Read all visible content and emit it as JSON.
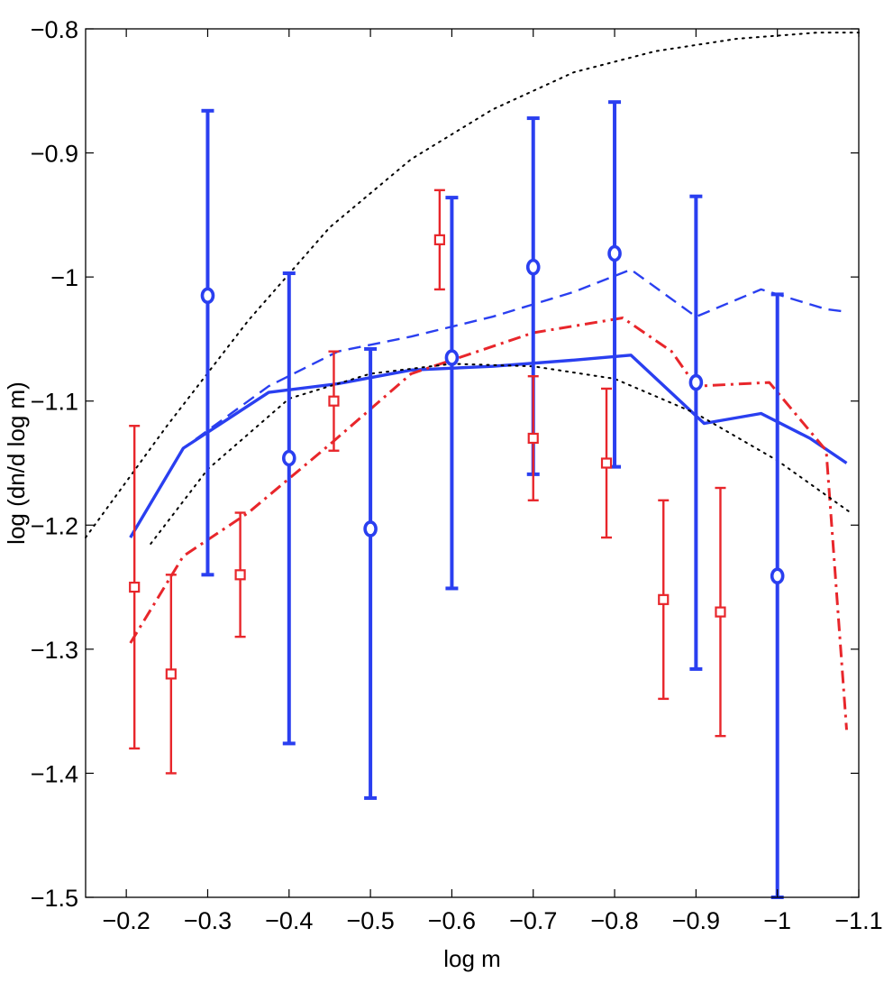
{
  "chart_data": {
    "type": "line",
    "title": "",
    "xlabel": "log m",
    "ylabel": "log (dn/d log m)",
    "xlim": [
      -0.15,
      -1.1
    ],
    "ylim": [
      -1.5,
      -0.8
    ],
    "x_reversed": true,
    "xticks": [
      -0.2,
      -0.3,
      -0.4,
      -0.5,
      -0.6,
      -0.7,
      -0.8,
      -0.9,
      -1,
      -1.1
    ],
    "xtick_labels": [
      "−0.2",
      "−0.3",
      "−0.4",
      "−0.5",
      "−0.6",
      "−0.7",
      "−0.8",
      "−0.9",
      "−1",
      "−1.1"
    ],
    "yticks": [
      -1.5,
      -1.4,
      -1.3,
      -1.2,
      -1.1,
      -1,
      -0.9,
      -0.8
    ],
    "ytick_labels": [
      "−1.5",
      "−1.4",
      "−1.3",
      "−1.2",
      "−1.1",
      "−1",
      "−0.9",
      "−0.8"
    ],
    "grid": false,
    "series": [
      {
        "name": "blue-circles",
        "kind": "errorbar",
        "marker": "circle",
        "color": "#2a3ff0",
        "points": [
          {
            "x": -0.3,
            "y": -1.015,
            "lo": -1.24,
            "hi": -0.866
          },
          {
            "x": -0.4,
            "y": -1.146,
            "lo": -1.376,
            "hi": -0.997
          },
          {
            "x": -0.5,
            "y": -1.203,
            "lo": -1.42,
            "hi": -1.058
          },
          {
            "x": -0.6,
            "y": -1.065,
            "lo": -1.251,
            "hi": -0.936
          },
          {
            "x": -0.7,
            "y": -0.992,
            "lo": -1.159,
            "hi": -0.872
          },
          {
            "x": -0.8,
            "y": -0.981,
            "lo": -1.153,
            "hi": -0.859
          },
          {
            "x": -0.9,
            "y": -1.085,
            "lo": -1.316,
            "hi": -0.935
          },
          {
            "x": -1.0,
            "y": -1.241,
            "lo": -1.5,
            "hi": -1.014
          }
        ]
      },
      {
        "name": "red-squares",
        "kind": "errorbar",
        "marker": "square",
        "color": "#e8262b",
        "points": [
          {
            "x": -0.21,
            "y": -1.25,
            "lo": -1.38,
            "hi": -1.12
          },
          {
            "x": -0.255,
            "y": -1.32,
            "lo": -1.4,
            "hi": -1.24
          },
          {
            "x": -0.34,
            "y": -1.24,
            "lo": -1.29,
            "hi": -1.19
          },
          {
            "x": -0.455,
            "y": -1.1,
            "lo": -1.14,
            "hi": -1.06
          },
          {
            "x": -0.585,
            "y": -0.97,
            "lo": -1.01,
            "hi": -0.93
          },
          {
            "x": -0.7,
            "y": -1.13,
            "lo": -1.18,
            "hi": -1.08
          },
          {
            "x": -0.79,
            "y": -1.15,
            "lo": -1.21,
            "hi": -1.09
          },
          {
            "x": -0.86,
            "y": -1.26,
            "lo": -1.34,
            "hi": -1.18
          },
          {
            "x": -0.93,
            "y": -1.27,
            "lo": -1.37,
            "hi": -1.17
          }
        ]
      },
      {
        "name": "blue-solid",
        "kind": "line",
        "style": "solid",
        "color": "#2a3ff0",
        "x": [
          -0.205,
          -0.27,
          -0.375,
          -0.46,
          -0.55,
          -0.65,
          -0.75,
          -0.82,
          -0.91,
          -0.98,
          -1.04,
          -1.085
        ],
        "y": [
          -1.21,
          -1.138,
          -1.093,
          -1.086,
          -1.075,
          -1.072,
          -1.067,
          -1.063,
          -1.118,
          -1.11,
          -1.13,
          -1.15
        ]
      },
      {
        "name": "blue-dashed",
        "kind": "line",
        "style": "dashed",
        "color": "#2a3ff0",
        "x": [
          -0.205,
          -0.27,
          -0.375,
          -0.46,
          -0.55,
          -0.65,
          -0.75,
          -0.82,
          -0.9,
          -0.98,
          -1.06,
          -1.085
        ],
        "y": [
          -1.21,
          -1.138,
          -1.088,
          -1.06,
          -1.048,
          -1.032,
          -1.012,
          -0.994,
          -1.032,
          -1.01,
          -1.026,
          -1.028
        ]
      },
      {
        "name": "red-dashdot",
        "kind": "line",
        "style": "dashdot",
        "color": "#e8262b",
        "x": [
          -0.205,
          -0.27,
          -0.35,
          -0.45,
          -0.55,
          -0.7,
          -0.81,
          -0.87,
          -0.9,
          -0.99,
          -1.06,
          -1.085
        ],
        "y": [
          -1.295,
          -1.225,
          -1.19,
          -1.135,
          -1.078,
          -1.045,
          -1.033,
          -1.06,
          -1.088,
          -1.085,
          -1.14,
          -1.365
        ]
      },
      {
        "name": "black-dotted-upper",
        "kind": "line",
        "style": "dotted",
        "color": "#000000",
        "x": [
          -0.15,
          -0.25,
          -0.35,
          -0.45,
          -0.55,
          -0.65,
          -0.75,
          -0.85,
          -0.95,
          -1.05,
          -1.1
        ],
        "y": [
          -1.21,
          -1.12,
          -1.035,
          -0.96,
          -0.905,
          -0.865,
          -0.835,
          -0.818,
          -0.808,
          -0.803,
          -0.803
        ]
      },
      {
        "name": "black-dotted-lower",
        "kind": "line",
        "style": "dotted",
        "color": "#000000",
        "x": [
          -0.23,
          -0.3,
          -0.4,
          -0.5,
          -0.6,
          -0.7,
          -0.8,
          -0.9,
          -1.0,
          -1.09
        ],
        "y": [
          -1.215,
          -1.155,
          -1.098,
          -1.078,
          -1.07,
          -1.072,
          -1.082,
          -1.11,
          -1.148,
          -1.19
        ]
      }
    ]
  }
}
